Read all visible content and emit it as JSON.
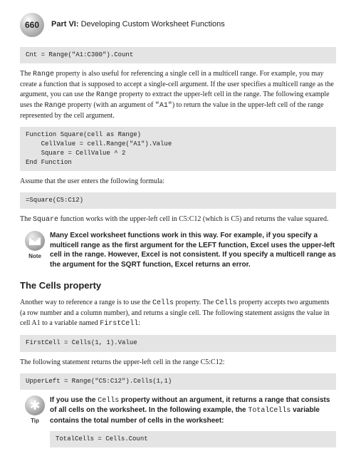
{
  "page_number": "660",
  "part_label_bold": "Part VI:",
  "part_label_rest": " Developing Custom Worksheet Functions",
  "code1": "Cnt = Range(\"A1:C300\").Count",
  "para1_a": "The ",
  "para1_b": "Range",
  "para1_c": " property is also useful for referencing a single cell in a multicell range. For example, you may create a function that is supposed to accept a single-cell argument. If the user specifies a multicell range as the argument, you can use the ",
  "para1_d": "Range",
  "para1_e": " property to extract the upper-left cell in the range. The following example uses the ",
  "para1_f": "Range",
  "para1_g": " property (with an argument of ",
  "para1_h": "\"A1\"",
  "para1_i": ") to return the value in the upper-left cell of the range represented by the cell argument.",
  "code2": "Function Square(cell as Range)\n    CellValue = cell.Range(\"A1\").Value\n    Square = CellValue ^ 2\nEnd Function",
  "para2": "Assume that the user enters the following formula:",
  "code3": "=Square(C5:C12)",
  "para3_a": "The ",
  "para3_b": "Square",
  "para3_c": " function works with the upper-left cell in C5:C12 (which is C5) and returns the value squared.",
  "note_label": "Note",
  "note_text": "Many Excel worksheet functions work in this way. For example, if you specify a multicell range as the first argument for the LEFT function, Excel uses the upper-left cell in the range. However, Excel is not consistent. If you specify a multicell range as the argument for the SQRT function, Excel returns an error.",
  "heading_cells": "The Cells property",
  "para4_a": "Another way to reference a range is to use the ",
  "para4_b": "Cells",
  "para4_c": " property. The ",
  "para4_d": "Cells",
  "para4_e": " property accepts two arguments (a row number and a column number), and returns a single cell. The following statement assigns the value in cell A1 to a variable named ",
  "para4_f": "FirstCell",
  "para4_g": ":",
  "code4": "FirstCell = Cells(1, 1).Value",
  "para5": "The following statement returns the upper-left cell in the range C5:C12:",
  "code5": "UpperLeft = Range(\"C5:C12\").Cells(1,1)",
  "tip_label": "Tip",
  "tip_a": "If you use the ",
  "tip_b": "Cells",
  "tip_c": " property without an argument, it returns a range that consists of all cells on the worksheet. In the following example, the ",
  "tip_d": "TotalCells",
  "tip_e": " variable contains the total number of cells in the worksheet:",
  "code6": "TotalCells = Cells.Count"
}
